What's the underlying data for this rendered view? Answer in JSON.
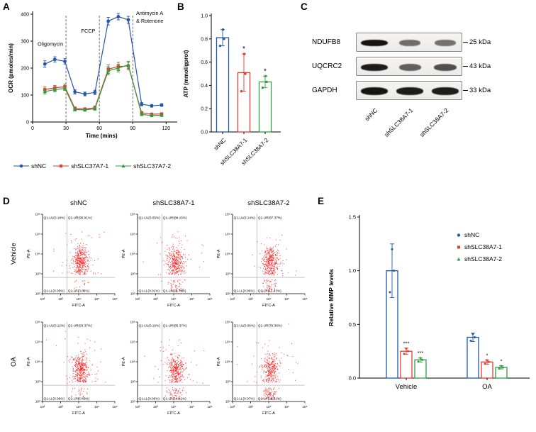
{
  "panel_labels": {
    "a": "A",
    "b": "B",
    "c": "C",
    "d": "D",
    "e": "E"
  },
  "colors": {
    "shNC": "#2356a8",
    "sh1": "#e23b33",
    "sh2": "#2f9e3f",
    "flow_dot": "#fb1414"
  },
  "panel_a": {
    "legend": [
      {
        "label": "shNC",
        "marker": "circle",
        "color": "#2356a8"
      },
      {
        "label": "shSLC37A7-1",
        "marker": "square",
        "color": "#e23b33"
      },
      {
        "label": "shSLC37A7-2",
        "marker": "triangle",
        "color": "#2f9e3f"
      }
    ]
  },
  "panel_c": {
    "rows": [
      {
        "protein": "NDUFB8",
        "kda": "25 kDa",
        "intensities": [
          1.0,
          0.42,
          0.38
        ]
      },
      {
        "protein": "UQCRC2",
        "kda": "43 kDa",
        "intensities": [
          0.95,
          0.5,
          0.62
        ]
      },
      {
        "protein": "GAPDH",
        "kda": "33 kDa",
        "intensities": [
          1.0,
          0.95,
          0.95
        ]
      }
    ],
    "lanes": [
      "shNC",
      "shSLC38A7-1",
      "shSLC38A7-2"
    ]
  },
  "panel_d": {
    "col_titles": [
      "shNC",
      "shSLC38A7-1",
      "shSLC38A7-2"
    ],
    "row_titles": [
      "Vehicle",
      "OA"
    ],
    "ticks": [
      "10²",
      "10³",
      "10⁴",
      "10⁵",
      "10⁶"
    ]
  },
  "chart_data": [
    {
      "id": "ocr",
      "type": "line",
      "title": "",
      "xlabel": "Time (mins)",
      "ylabel": "OCR (pmoles/min)",
      "xlim": [
        0,
        130
      ],
      "ylim": [
        0,
        400
      ],
      "xticks": [
        0,
        30,
        60,
        90,
        120
      ],
      "yticks": [
        0,
        100,
        200,
        300,
        400
      ],
      "vlines": [
        30,
        60,
        90
      ],
      "annotations": [
        {
          "text": "Oligomycin",
          "x": 16,
          "y": 283,
          "anchor": "middle"
        },
        {
          "text": "FCCP",
          "x": 50,
          "y": 332,
          "anchor": "middle"
        },
        {
          "text": "Antimycin A",
          "x": 93,
          "y": 398,
          "anchor": "start"
        },
        {
          "text": "& Rotenone",
          "x": 93,
          "y": 368,
          "anchor": "start"
        }
      ],
      "x": [
        11,
        20,
        29,
        38,
        47,
        56,
        68,
        77,
        86,
        98,
        107,
        116
      ],
      "series": [
        {
          "name": "shNC",
          "color": "#2356a8",
          "marker": "circle",
          "values": [
            215,
            232,
            225,
            112,
            104,
            110,
            374,
            391,
            379,
            66,
            60,
            63
          ],
          "errors": [
            12,
            10,
            10,
            8,
            7,
            8,
            14,
            12,
            13,
            6,
            5,
            5
          ]
        },
        {
          "name": "shSLC37A7-1",
          "color": "#e23b33",
          "marker": "square",
          "values": [
            120,
            127,
            131,
            50,
            48,
            53,
            196,
            206,
            208,
            34,
            29,
            30
          ],
          "errors": [
            10,
            9,
            9,
            6,
            5,
            6,
            16,
            15,
            14,
            5,
            4,
            4
          ]
        },
        {
          "name": "shSLC37A7-2",
          "color": "#2f9e3f",
          "marker": "triangle",
          "values": [
            113,
            120,
            125,
            46,
            45,
            49,
            190,
            200,
            212,
            28,
            24,
            25
          ],
          "errors": [
            9,
            8,
            8,
            5,
            5,
            5,
            15,
            14,
            13,
            4,
            4,
            4
          ]
        }
      ]
    },
    {
      "id": "atp",
      "type": "bar",
      "ylabel": "ATP (mmol/gprot)",
      "ylim": [
        0,
        1.0
      ],
      "yticks": [
        0,
        0.2,
        0.4,
        0.6,
        0.8,
        1.0
      ],
      "categories": [
        "shNC",
        "shSLC38A7-1",
        "shSLC38A7-2"
      ],
      "values": [
        0.81,
        0.51,
        0.43
      ],
      "errors": [
        0.07,
        0.16,
        0.05
      ],
      "colors": [
        "#2356a8",
        "#e23b33",
        "#2f9e3f"
      ],
      "points": [
        [
          0.74,
          0.8,
          0.88
        ],
        [
          0.35,
          0.5,
          0.67
        ],
        [
          0.38,
          0.43,
          0.48
        ]
      ],
      "significance": [
        "",
        "*",
        "*"
      ]
    },
    {
      "id": "flow",
      "type": "scatter",
      "xlabel": "FITC-A",
      "ylabel": "PE-A",
      "color": "#fb1414",
      "log_decades": [
        2,
        6
      ],
      "cross": {
        "x_log": 3.35,
        "y_log": 2.82
      },
      "plots": [
        {
          "row": "Vehicle",
          "col": "shNC",
          "ul": "Q1-UL(0.18%)",
          "ur": "Q1-UR(95.91%)",
          "ll": "Q1-LL(0.05%)",
          "lr": "Q1-LR(3.86%)",
          "lr_frac": 0.04
        },
        {
          "row": "Vehicle",
          "col": "shSLC38A7-1",
          "ul": "Q1-UL(0.05%)",
          "ur": "Q1-UR(88.15%)",
          "ll": "Q1-LL(0.01%)",
          "lr": "Q1-LR(11.79%)",
          "lr_frac": 0.12
        },
        {
          "row": "Vehicle",
          "col": "shSLC38A7-2",
          "ul": "Q1-UL(0.14%)",
          "ur": "Q1-UR(87.37%)",
          "ll": "Q1-LL(0.06%)",
          "lr": "Q1-LR(12.43%)",
          "lr_frac": 0.125
        },
        {
          "row": "OA",
          "col": "shNC",
          "ul": "Q1-UL(0.12%)",
          "ur": "Q1-UR(93.37%)",
          "ll": "Q1-LL(0.06%)",
          "lr": "Q1-LR(6.45%)",
          "lr_frac": 0.065
        },
        {
          "row": "OA",
          "col": "shSLC38A7-1",
          "ul": "Q1-UL(0.16%)",
          "ur": "Q1-UR(85.37%)",
          "ll": "Q1-LL(0.06%)",
          "lr": "Q1-LR(14.41%)",
          "lr_frac": 0.145
        },
        {
          "row": "OA",
          "col": "shSLC38A7-2",
          "ul": "Q1-UL(0.06%)",
          "ur": "Q1-UR(79.36%)",
          "ll": "Q1-LL(0.07%)",
          "lr": "Q1-LR(20.51%)",
          "lr_frac": 0.205
        }
      ]
    },
    {
      "id": "mmp",
      "type": "bar",
      "ylabel": "Relative MMP levels",
      "ylim": [
        0,
        1.5
      ],
      "yticks": [
        0,
        0.5,
        1.0,
        1.5
      ],
      "categories": [
        "Vehicle",
        "OA"
      ],
      "series": [
        {
          "name": "shNC",
          "color": "#2356a8",
          "marker": "circle",
          "values": [
            1.0,
            0.38
          ],
          "errors": [
            0.25,
            0.04
          ],
          "sig": [
            "",
            ""
          ]
        },
        {
          "name": "shSLC38A7-1",
          "color": "#e23b33",
          "marker": "square",
          "values": [
            0.25,
            0.15
          ],
          "errors": [
            0.03,
            0.02
          ],
          "sig": [
            "***",
            "*"
          ]
        },
        {
          "name": "shSLC38A7-2",
          "color": "#2f9e3f",
          "marker": "triangle",
          "values": [
            0.17,
            0.1
          ],
          "errors": [
            0.02,
            0.015
          ],
          "sig": [
            "***",
            "*"
          ]
        }
      ],
      "legend_position": "top-right"
    }
  ]
}
